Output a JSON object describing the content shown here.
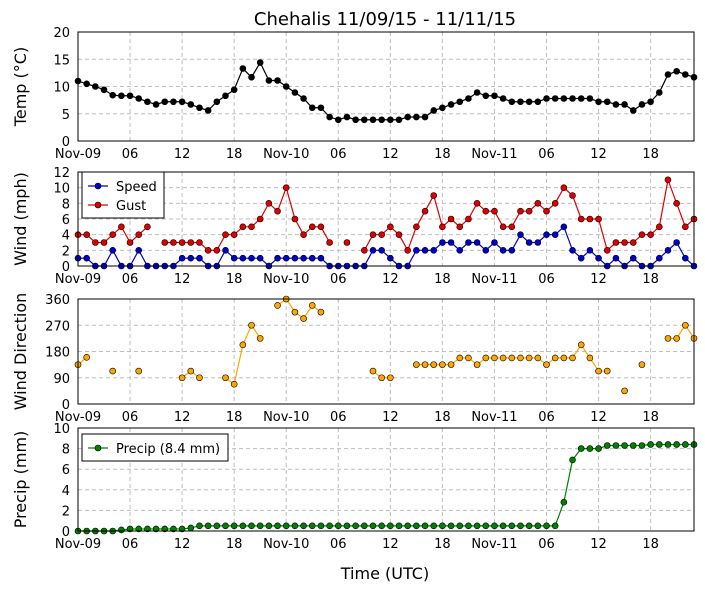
{
  "title": "Chehalis 11/09/15 - 11/11/15",
  "xlabel": "Time (UTC)",
  "xticks": [
    "Nov-09",
    "06",
    "12",
    "18",
    "Nov-10",
    "06",
    "12",
    "18",
    "Nov-11",
    "06",
    "12",
    "18"
  ],
  "colors": {
    "temp": "#000000",
    "speed": "#0000cc",
    "gust": "#dd0000",
    "dir_line": "#ffa500",
    "dir_fill": "#ffa500",
    "precip": "#008000",
    "grid": "#bfbfbf"
  },
  "chart_data": [
    {
      "type": "line",
      "ylabel": "Temp (°C)",
      "ylim": [
        0,
        20
      ],
      "yticks": [
        "0",
        "5",
        "10",
        "15",
        "20"
      ],
      "x_hours": [
        0,
        1,
        2,
        3,
        4,
        5,
        6,
        7,
        8,
        9,
        10,
        11,
        12,
        13,
        14,
        15,
        16,
        17,
        18,
        19,
        20,
        21,
        22,
        23,
        24,
        25,
        26,
        27,
        28,
        29,
        30,
        31,
        32,
        33,
        34,
        35,
        36,
        37,
        38,
        39,
        40,
        41,
        42,
        43,
        44,
        45,
        46,
        47,
        48,
        49,
        50,
        51,
        52,
        53,
        54,
        55,
        56,
        57,
        58,
        59,
        60,
        61,
        62,
        63,
        64,
        65,
        66,
        67,
        68,
        69,
        70,
        71
      ],
      "series": [
        {
          "key": "temp",
          "values": [
            11,
            10.5,
            10,
            9.4,
            8.4,
            8.3,
            8.3,
            7.8,
            7.2,
            6.7,
            7.2,
            7.2,
            7.2,
            6.7,
            6.1,
            5.6,
            7.2,
            8.3,
            9.4,
            13.3,
            11.7,
            14.4,
            11.1,
            11.1,
            10,
            8.9,
            7.8,
            6.1,
            6.1,
            4.4,
            3.9,
            4.4,
            3.9,
            3.9,
            3.9,
            3.9,
            3.9,
            3.9,
            4.4,
            4.4,
            4.4,
            5.6,
            6.1,
            6.7,
            7.2,
            7.8,
            8.9,
            8.3,
            8.3,
            7.8,
            7.2,
            7.2,
            7.2,
            7.2,
            7.8,
            7.8,
            7.8,
            7.8,
            7.8,
            7.8,
            7.2,
            7.2,
            6.7,
            6.7,
            5.6,
            6.7,
            7.2,
            8.9,
            12.2,
            12.8,
            12.2,
            11.7
          ]
        }
      ]
    },
    {
      "type": "line",
      "ylabel": "Wind (mph)",
      "ylim": [
        0,
        12
      ],
      "yticks": [
        "0",
        "2",
        "4",
        "6",
        "8",
        "10",
        "12"
      ],
      "x_hours": [
        0,
        1,
        2,
        3,
        4,
        5,
        6,
        7,
        8,
        9,
        10,
        11,
        12,
        13,
        14,
        15,
        16,
        17,
        18,
        19,
        20,
        21,
        22,
        23,
        24,
        25,
        26,
        27,
        28,
        29,
        30,
        31,
        32,
        33,
        34,
        35,
        36,
        37,
        38,
        39,
        40,
        41,
        42,
        43,
        44,
        45,
        46,
        47,
        48,
        49,
        50,
        51,
        52,
        53,
        54,
        55,
        56,
        57,
        58,
        59,
        60,
        61,
        62,
        63,
        64,
        65,
        66,
        67,
        68,
        69,
        70,
        71
      ],
      "legend": [
        "Speed",
        "Gust"
      ],
      "series": [
        {
          "key": "speed",
          "name": "Speed",
          "values": [
            1,
            1,
            0,
            0,
            2,
            0,
            0,
            2,
            0,
            0,
            0,
            0,
            1,
            1,
            1,
            0,
            0,
            2,
            1,
            1,
            1,
            1,
            0,
            1,
            1,
            1,
            1,
            1,
            1,
            0,
            0,
            0,
            0,
            0,
            2,
            2,
            1,
            0,
            0,
            2,
            2,
            2,
            3,
            3,
            2,
            3,
            3,
            2,
            3,
            2,
            2,
            4,
            3,
            3,
            4,
            4,
            5,
            2,
            1,
            2,
            1,
            0,
            1,
            0,
            1,
            0,
            0,
            1,
            2,
            3,
            1,
            0
          ]
        },
        {
          "key": "gust",
          "name": "Gust",
          "values": [
            4,
            4,
            3,
            3,
            4,
            5,
            3,
            4,
            5,
            null,
            3,
            3,
            3,
            3,
            3,
            2,
            2,
            4,
            4,
            5,
            5,
            6,
            8,
            7,
            10,
            6,
            4,
            5,
            5,
            3,
            null,
            3,
            null,
            2,
            4,
            4,
            5,
            4,
            2,
            5,
            7,
            9,
            5,
            6,
            5,
            6,
            8,
            7,
            7,
            5,
            5,
            7,
            7,
            8,
            7,
            8,
            10,
            9,
            6,
            6,
            6,
            2,
            3,
            3,
            3,
            4,
            4,
            5,
            11,
            8,
            5,
            6
          ]
        }
      ]
    },
    {
      "type": "scatter",
      "ylabel": "Wind Direction",
      "ylim": [
        0,
        360
      ],
      "yticks": [
        "0",
        "90",
        "180",
        "270",
        "360"
      ],
      "x_hours": [
        0,
        1,
        2,
        3,
        4,
        5,
        6,
        7,
        8,
        9,
        10,
        11,
        12,
        13,
        14,
        15,
        16,
        17,
        18,
        19,
        20,
        21,
        22,
        23,
        24,
        25,
        26,
        27,
        28,
        29,
        30,
        31,
        32,
        33,
        34,
        35,
        36,
        37,
        38,
        39,
        40,
        41,
        42,
        43,
        44,
        45,
        46,
        47,
        48,
        49,
        50,
        51,
        52,
        53,
        54,
        55,
        56,
        57,
        58,
        59,
        60,
        61,
        62,
        63,
        64,
        65,
        66,
        67,
        68,
        69,
        70,
        71
      ],
      "series": [
        {
          "key": "dir",
          "values": [
            135,
            160,
            null,
            null,
            113,
            null,
            null,
            113,
            null,
            null,
            null,
            null,
            90,
            113,
            90,
            null,
            null,
            90,
            68,
            203,
            270,
            225,
            null,
            338,
            360,
            315,
            293,
            338,
            315,
            null,
            null,
            null,
            null,
            null,
            113,
            90,
            90,
            null,
            null,
            135,
            135,
            135,
            135,
            135,
            158,
            158,
            135,
            158,
            158,
            158,
            158,
            158,
            158,
            158,
            135,
            158,
            158,
            158,
            203,
            158,
            113,
            113,
            null,
            45,
            null,
            135,
            null,
            null,
            225,
            225,
            270,
            225
          ]
        }
      ]
    },
    {
      "type": "line",
      "ylabel": "Precip (mm)",
      "ylim": [
        0,
        10
      ],
      "yticks": [
        "0",
        "2",
        "4",
        "6",
        "8",
        "10"
      ],
      "x_hours": [
        0,
        1,
        2,
        3,
        4,
        5,
        6,
        7,
        8,
        9,
        10,
        11,
        12,
        13,
        14,
        15,
        16,
        17,
        18,
        19,
        20,
        21,
        22,
        23,
        24,
        25,
        26,
        27,
        28,
        29,
        30,
        31,
        32,
        33,
        34,
        35,
        36,
        37,
        38,
        39,
        40,
        41,
        42,
        43,
        44,
        45,
        46,
        47,
        48,
        49,
        50,
        51,
        52,
        53,
        54,
        55,
        56,
        57,
        58,
        59,
        60,
        61,
        62,
        63,
        64,
        65,
        66,
        67,
        68,
        69,
        70,
        71
      ],
      "legend": [
        "Precip (8.4 mm)"
      ],
      "series": [
        {
          "key": "precip",
          "name": "Precip (8.4 mm)",
          "values": [
            0,
            0,
            0,
            0,
            0,
            0.1,
            0.2,
            0.2,
            0.2,
            0.2,
            0.2,
            0.2,
            0.2,
            0.3,
            0.5,
            0.5,
            0.5,
            0.5,
            0.5,
            0.5,
            0.5,
            0.5,
            0.5,
            0.5,
            0.5,
            0.5,
            0.5,
            0.5,
            0.5,
            0.5,
            0.5,
            0.5,
            0.5,
            0.5,
            0.5,
            0.5,
            0.5,
            0.5,
            0.5,
            0.5,
            0.5,
            0.5,
            0.5,
            0.5,
            0.5,
            0.5,
            0.5,
            0.5,
            0.5,
            0.5,
            0.5,
            0.5,
            0.5,
            0.5,
            0.5,
            0.5,
            2.8,
            6.9,
            8,
            8,
            8,
            8.3,
            8.3,
            8.3,
            8.3,
            8.3,
            8.4,
            8.4,
            8.4,
            8.4,
            8.4,
            8.4
          ]
        }
      ]
    }
  ]
}
